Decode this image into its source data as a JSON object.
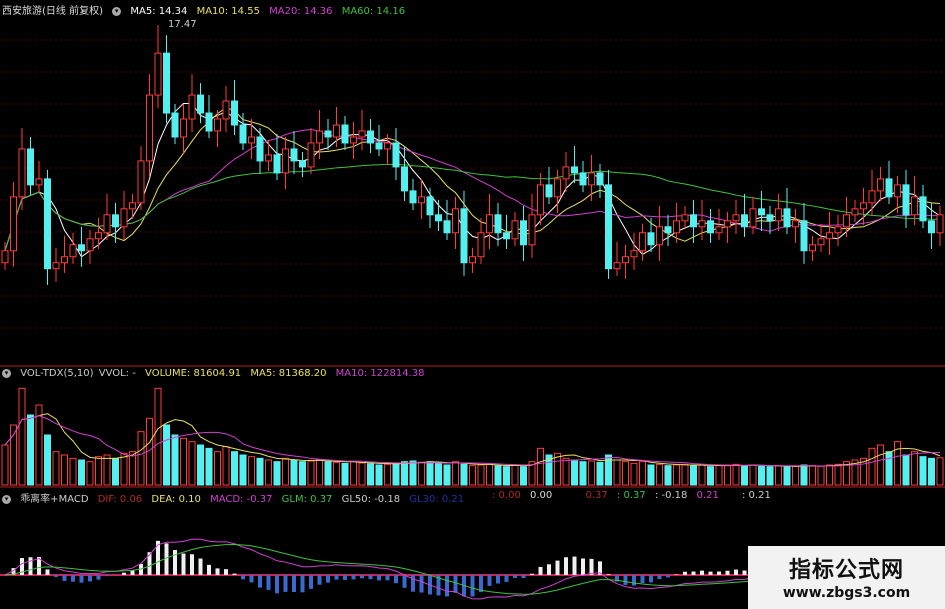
{
  "header": {
    "title": "西安旅游(日线 前复权)",
    "ma5": "MA5: 14.34",
    "ma10": "MA10: 14.55",
    "ma20": "MA20: 14.36",
    "ma60": "MA60: 14.16",
    "high_label": "17.47"
  },
  "volume_header": {
    "name": "VOL-TDX(5,10)",
    "vvol": "VVOL: -",
    "volume": "VOLUME: 81604.91",
    "ma5": "MA5: 81368.20",
    "ma10": "MA10: 122814.38"
  },
  "macd_header": {
    "name": "乖离率+MACD",
    "dif": "DIF: 0.06",
    "dea": "DEA: 0.10",
    "macd": "MACD: -0.37",
    "glm": "GLM: 0.37",
    "gl50": "GL50: -0.18",
    "gl30": "GL30: 0.21",
    "extra": [
      ": 0.00",
      "0.00",
      "0.37",
      ": 0.37",
      ": -0.18",
      "0.21",
      "0.21",
      ": 0.21"
    ]
  },
  "watermark": {
    "title": "指标公式网",
    "url": "www.zbgs3.com"
  },
  "colors": {
    "up": "#ff3b3b",
    "down": "#54f0f0",
    "ma5": "#ffffff",
    "ma10": "#e8e060",
    "ma20": "#d040d0",
    "ma60": "#40c040",
    "separator": "#b02020"
  },
  "chart_data": {
    "type": "candlestick",
    "title": "西安旅游(日线 前复权)",
    "max_price": 17.47,
    "close": [
      13.7,
      14.6,
      15.4,
      14.8,
      14.9,
      13.4,
      13.5,
      13.6,
      13.8,
      13.7,
      13.9,
      14.0,
      14.3,
      14.1,
      14.4,
      14.5,
      15.2,
      16.3,
      17.0,
      16.0,
      15.6,
      15.9,
      16.3,
      16.0,
      15.7,
      15.9,
      16.2,
      15.8,
      15.5,
      15.6,
      15.2,
      15.3,
      15.0,
      15.4,
      15.2,
      15.1,
      15.5,
      15.7,
      15.6,
      15.8,
      15.5,
      15.6,
      15.7,
      15.5,
      15.4,
      15.5,
      15.1,
      14.7,
      14.5,
      14.6,
      14.3,
      14.2,
      14.0,
      14.4,
      13.5,
      13.6,
      14.0,
      14.3,
      14.0,
      13.9,
      14.2,
      13.8,
      14.3,
      14.8,
      14.6,
      14.9,
      15.1,
      15.0,
      14.8,
      15.0,
      14.8,
      13.4,
      13.5,
      13.6,
      13.7,
      14.0,
      13.8,
      14.1,
      14.0,
      14.2,
      14.3,
      14.1,
      14.2,
      14.0,
      14.1,
      14.2,
      14.3,
      14.1,
      14.4,
      14.3,
      14.2,
      14.4,
      14.1,
      14.2,
      13.7,
      13.8,
      13.9,
      14.0,
      14.1,
      14.3,
      14.4,
      14.5,
      14.7,
      14.9,
      14.6,
      14.8,
      14.3,
      14.6,
      14.2,
      14.0,
      14.3
    ],
    "volume": [
      120000,
      180000,
      290000,
      210000,
      240000,
      150000,
      100000,
      90000,
      80000,
      75000,
      70000,
      85000,
      90000,
      80000,
      95000,
      100000,
      160000,
      200000,
      290000,
      180000,
      150000,
      140000,
      130000,
      120000,
      110000,
      100000,
      115000,
      100000,
      90000,
      85000,
      80000,
      75000,
      70000,
      80000,
      75000,
      70000,
      72000,
      75000,
      70000,
      68000,
      65000,
      70000,
      66000,
      64000,
      60000,
      62000,
      65000,
      70000,
      72000,
      68000,
      70000,
      65000,
      60000,
      70000,
      62000,
      58000,
      60000,
      62000,
      58000,
      55000,
      60000,
      55000,
      70000,
      110000,
      90000,
      95000,
      80000,
      75000,
      70000,
      72000,
      68000,
      90000,
      75000,
      70000,
      65000,
      70000,
      60000,
      62000,
      58000,
      60000,
      62000,
      58000,
      60000,
      55000,
      58000,
      60000,
      62000,
      58000,
      60000,
      56000,
      55000,
      58000,
      54000,
      56000,
      60000,
      58000,
      56000,
      60000,
      62000,
      70000,
      75000,
      80000,
      110000,
      120000,
      100000,
      130000,
      90000,
      100000,
      85000,
      80000,
      81605
    ]
  }
}
